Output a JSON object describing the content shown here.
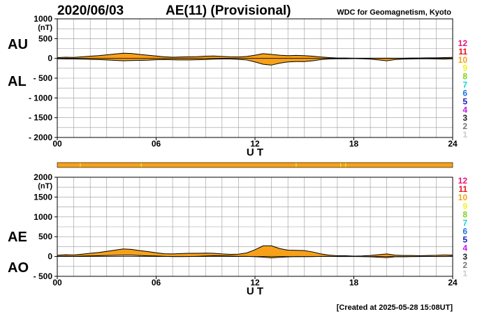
{
  "header": {
    "date": "2020/06/03",
    "title": "AE(11) (Provisional)",
    "source": "WDC for Geomagnetism, Kyoto",
    "created": "[Created at 2025-05-28 15:08UT]"
  },
  "colors": {
    "fill": "#F7A11A",
    "line": "#000000",
    "grid": "#999999"
  },
  "chart_data": [
    {
      "type": "area",
      "panel": "AU/AL",
      "labels_upper": "AU",
      "labels_lower": "AL",
      "xlabel": "U T",
      "unit": "(nT)",
      "ylim": [
        -2000,
        1000
      ],
      "yticks": [
        1000,
        500,
        0,
        -500,
        -1000,
        -1500,
        -2000
      ],
      "ytick_labels": [
        "1000",
        "500",
        "0",
        "- 500",
        "- 1000",
        "- 1500",
        "- 2000"
      ],
      "xlim": [
        0,
        24
      ],
      "xticks": [
        0,
        6,
        12,
        18,
        24
      ],
      "xtick_labels": [
        "00",
        "06",
        "12",
        "18",
        "24"
      ],
      "x_hours": [
        0,
        0.5,
        1,
        1.5,
        2,
        2.5,
        3,
        3.5,
        4,
        4.5,
        5,
        5.5,
        6,
        6.5,
        7,
        7.5,
        8,
        8.5,
        9,
        9.5,
        10,
        10.5,
        11,
        11.5,
        12,
        12.5,
        13,
        13.5,
        14,
        14.5,
        15,
        15.5,
        16,
        16.5,
        17,
        17.5,
        18,
        18.5,
        19,
        19.5,
        20,
        20.5,
        21,
        21.5,
        22,
        22.5,
        23,
        23.5,
        24
      ],
      "series": [
        {
          "name": "AU",
          "values": [
            20,
            30,
            25,
            40,
            55,
            70,
            90,
            110,
            130,
            125,
            100,
            80,
            60,
            40,
            30,
            35,
            40,
            45,
            55,
            60,
            50,
            40,
            35,
            50,
            80,
            120,
            100,
            80,
            70,
            75,
            70,
            55,
            35,
            20,
            10,
            10,
            5,
            5,
            5,
            5,
            5,
            5,
            5,
            10,
            10,
            15,
            15,
            20,
            25
          ]
        },
        {
          "name": "AL",
          "values": [
            -10,
            -15,
            -15,
            -20,
            -25,
            -30,
            -40,
            -50,
            -60,
            -55,
            -50,
            -45,
            -35,
            -30,
            -35,
            -40,
            -40,
            -35,
            -30,
            -20,
            -15,
            -15,
            -25,
            -40,
            -90,
            -150,
            -170,
            -120,
            -90,
            -80,
            -80,
            -60,
            -30,
            -15,
            -10,
            -10,
            -5,
            -10,
            -20,
            -40,
            -60,
            -30,
            -20,
            -15,
            -10,
            -10,
            -15,
            -20,
            -10
          ]
        }
      ]
    },
    {
      "type": "area",
      "panel": "AE/AO",
      "labels_upper": "AE",
      "labels_lower": "AO",
      "xlabel": "U T",
      "unit": "(nT)",
      "ylim": [
        -500,
        2000
      ],
      "yticks": [
        2000,
        1500,
        1000,
        500,
        0,
        -500
      ],
      "ytick_labels": [
        "2000",
        "1500",
        "1000",
        "500",
        "0",
        "- 500"
      ],
      "xlim": [
        0,
        24
      ],
      "xticks": [
        0,
        6,
        12,
        18,
        24
      ],
      "xtick_labels": [
        "00",
        "06",
        "12",
        "18",
        "24"
      ],
      "x_hours": [
        0,
        0.5,
        1,
        1.5,
        2,
        2.5,
        3,
        3.5,
        4,
        4.5,
        5,
        5.5,
        6,
        6.5,
        7,
        7.5,
        8,
        8.5,
        9,
        9.5,
        10,
        10.5,
        11,
        11.5,
        12,
        12.5,
        13,
        13.5,
        14,
        14.5,
        15,
        15.5,
        16,
        16.5,
        17,
        17.5,
        18,
        18.5,
        19,
        19.5,
        20,
        20.5,
        21,
        21.5,
        22,
        22.5,
        23,
        23.5,
        24
      ],
      "series": [
        {
          "name": "AE",
          "values": [
            30,
            45,
            40,
            60,
            80,
            100,
            130,
            160,
            190,
            180,
            150,
            125,
            95,
            70,
            65,
            75,
            80,
            80,
            85,
            80,
            65,
            55,
            60,
            90,
            170,
            270,
            270,
            200,
            160,
            155,
            150,
            115,
            65,
            35,
            20,
            20,
            10,
            15,
            25,
            45,
            65,
            35,
            25,
            25,
            20,
            25,
            30,
            40,
            35
          ]
        },
        {
          "name": "AO",
          "values": [
            5,
            8,
            5,
            10,
            15,
            20,
            25,
            30,
            35,
            35,
            25,
            18,
            13,
            5,
            -3,
            -3,
            0,
            5,
            13,
            20,
            18,
            13,
            5,
            5,
            -5,
            -15,
            -35,
            -20,
            -10,
            -3,
            -5,
            -3,
            3,
            3,
            0,
            0,
            0,
            -3,
            -8,
            -18,
            -28,
            -8,
            -8,
            -3,
            0,
            3,
            0,
            0,
            8
          ]
        }
      ]
    }
  ],
  "station_legend": {
    "numbers": [
      "12",
      "11",
      "10",
      "9",
      "8",
      "7",
      "6",
      "5",
      "4",
      "3",
      "2",
      "1"
    ],
    "colors": [
      "#E8127A",
      "#E8121E",
      "#F7A11A",
      "#F2F21A",
      "#7FD11A",
      "#1AD1D1",
      "#1A73E8",
      "#1A1AC4",
      "#C41AE8",
      "#222222",
      "#777777",
      "#CCCCCC"
    ]
  },
  "station_bar": {
    "color": "#F7A11A",
    "breaks_hours": [
      1.4,
      5.1,
      14.5,
      17.2,
      17.5
    ]
  }
}
